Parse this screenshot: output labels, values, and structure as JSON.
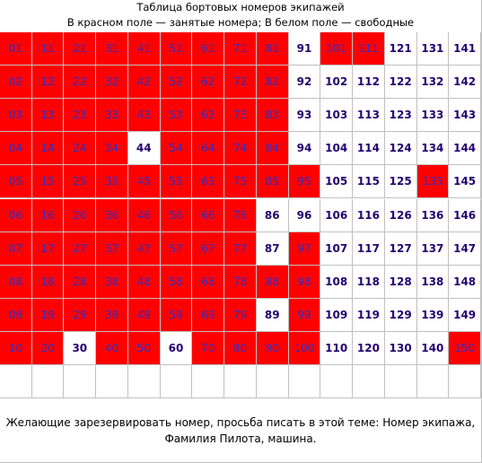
{
  "header": {
    "title": "Таблица бортовых номеров экипажей",
    "subtitle": "В красном поле — занятые номера; В белом поле — свободные"
  },
  "table": {
    "occupied_color": "#ff0000",
    "free_color": "#ffffff",
    "rows": [
      [
        {
          "label": "01",
          "occupied": true
        },
        {
          "label": "11",
          "occupied": true
        },
        {
          "label": "21",
          "occupied": true
        },
        {
          "label": "31",
          "occupied": true
        },
        {
          "label": "41",
          "occupied": true
        },
        {
          "label": "51",
          "occupied": true
        },
        {
          "label": "61",
          "occupied": true
        },
        {
          "label": "71",
          "occupied": true
        },
        {
          "label": "81",
          "occupied": true
        },
        {
          "label": "91",
          "occupied": false
        },
        {
          "label": "101",
          "occupied": true
        },
        {
          "label": "111",
          "occupied": true
        },
        {
          "label": "121",
          "occupied": false
        },
        {
          "label": "131",
          "occupied": false
        },
        {
          "label": "141",
          "occupied": false
        }
      ],
      [
        {
          "label": "02",
          "occupied": true
        },
        {
          "label": "12",
          "occupied": true
        },
        {
          "label": "22",
          "occupied": true
        },
        {
          "label": "32",
          "occupied": true
        },
        {
          "label": "42",
          "occupied": true
        },
        {
          "label": "52",
          "occupied": true
        },
        {
          "label": "62",
          "occupied": true
        },
        {
          "label": "72",
          "occupied": true
        },
        {
          "label": "82",
          "occupied": true
        },
        {
          "label": "92",
          "occupied": false
        },
        {
          "label": "102",
          "occupied": false
        },
        {
          "label": "112",
          "occupied": false
        },
        {
          "label": "122",
          "occupied": false
        },
        {
          "label": "132",
          "occupied": false
        },
        {
          "label": "142",
          "occupied": false
        }
      ],
      [
        {
          "label": "03",
          "occupied": true
        },
        {
          "label": "13",
          "occupied": true
        },
        {
          "label": "23",
          "occupied": true
        },
        {
          "label": "33",
          "occupied": true
        },
        {
          "label": "43",
          "occupied": true
        },
        {
          "label": "53",
          "occupied": true
        },
        {
          "label": "63",
          "occupied": true
        },
        {
          "label": "73",
          "occupied": true
        },
        {
          "label": "83",
          "occupied": true
        },
        {
          "label": "93",
          "occupied": false
        },
        {
          "label": "103",
          "occupied": false
        },
        {
          "label": "113",
          "occupied": false
        },
        {
          "label": "123",
          "occupied": false
        },
        {
          "label": "133",
          "occupied": false
        },
        {
          "label": "143",
          "occupied": false
        }
      ],
      [
        {
          "label": "04",
          "occupied": true
        },
        {
          "label": "14",
          "occupied": true
        },
        {
          "label": "24",
          "occupied": true
        },
        {
          "label": "34",
          "occupied": true
        },
        {
          "label": "44",
          "occupied": false
        },
        {
          "label": "54",
          "occupied": true
        },
        {
          "label": "64",
          "occupied": true
        },
        {
          "label": "74",
          "occupied": true
        },
        {
          "label": "84",
          "occupied": true
        },
        {
          "label": "94",
          "occupied": false
        },
        {
          "label": "104",
          "occupied": false
        },
        {
          "label": "114",
          "occupied": false
        },
        {
          "label": "124",
          "occupied": false
        },
        {
          "label": "134",
          "occupied": false
        },
        {
          "label": "144",
          "occupied": false
        }
      ],
      [
        {
          "label": "05",
          "occupied": true
        },
        {
          "label": "15",
          "occupied": true
        },
        {
          "label": "25",
          "occupied": true
        },
        {
          "label": "35",
          "occupied": true
        },
        {
          "label": "45",
          "occupied": true
        },
        {
          "label": "55",
          "occupied": true
        },
        {
          "label": "65",
          "occupied": true
        },
        {
          "label": "75",
          "occupied": true
        },
        {
          "label": "85",
          "occupied": true
        },
        {
          "label": "95",
          "occupied": true
        },
        {
          "label": "105",
          "occupied": false
        },
        {
          "label": "115",
          "occupied": false
        },
        {
          "label": "125",
          "occupied": false
        },
        {
          "label": "135",
          "occupied": true
        },
        {
          "label": "145",
          "occupied": false
        }
      ],
      [
        {
          "label": "06",
          "occupied": true
        },
        {
          "label": "16",
          "occupied": true
        },
        {
          "label": "26",
          "occupied": true
        },
        {
          "label": "36",
          "occupied": true
        },
        {
          "label": "46",
          "occupied": true
        },
        {
          "label": "56",
          "occupied": true
        },
        {
          "label": "66",
          "occupied": true
        },
        {
          "label": "76",
          "occupied": true
        },
        {
          "label": "86",
          "occupied": false
        },
        {
          "label": "96",
          "occupied": false
        },
        {
          "label": "106",
          "occupied": false
        },
        {
          "label": "116",
          "occupied": false
        },
        {
          "label": "126",
          "occupied": false
        },
        {
          "label": "136",
          "occupied": false
        },
        {
          "label": "146",
          "occupied": false
        }
      ],
      [
        {
          "label": "07",
          "occupied": true
        },
        {
          "label": "17",
          "occupied": true
        },
        {
          "label": "27",
          "occupied": true
        },
        {
          "label": "37",
          "occupied": true
        },
        {
          "label": "47",
          "occupied": true
        },
        {
          "label": "57",
          "occupied": true
        },
        {
          "label": "67",
          "occupied": true
        },
        {
          "label": "77",
          "occupied": true
        },
        {
          "label": "87",
          "occupied": false
        },
        {
          "label": "97",
          "occupied": true
        },
        {
          "label": "107",
          "occupied": false
        },
        {
          "label": "117",
          "occupied": false
        },
        {
          "label": "127",
          "occupied": false
        },
        {
          "label": "137",
          "occupied": false
        },
        {
          "label": "147",
          "occupied": false
        }
      ],
      [
        {
          "label": "08",
          "occupied": true
        },
        {
          "label": "18",
          "occupied": true
        },
        {
          "label": "28",
          "occupied": true
        },
        {
          "label": "38",
          "occupied": true
        },
        {
          "label": "48",
          "occupied": true
        },
        {
          "label": "58",
          "occupied": true
        },
        {
          "label": "68",
          "occupied": true
        },
        {
          "label": "78",
          "occupied": true
        },
        {
          "label": "88",
          "occupied": true
        },
        {
          "label": "98",
          "occupied": true
        },
        {
          "label": "108",
          "occupied": false
        },
        {
          "label": "118",
          "occupied": false
        },
        {
          "label": "128",
          "occupied": false
        },
        {
          "label": "138",
          "occupied": false
        },
        {
          "label": "148",
          "occupied": false
        }
      ],
      [
        {
          "label": "09",
          "occupied": true
        },
        {
          "label": "19",
          "occupied": true
        },
        {
          "label": "29",
          "occupied": true
        },
        {
          "label": "39",
          "occupied": true
        },
        {
          "label": "49",
          "occupied": true
        },
        {
          "label": "59",
          "occupied": true
        },
        {
          "label": "69",
          "occupied": true
        },
        {
          "label": "79",
          "occupied": true
        },
        {
          "label": "89",
          "occupied": false
        },
        {
          "label": "99",
          "occupied": true
        },
        {
          "label": "109",
          "occupied": false
        },
        {
          "label": "119",
          "occupied": false
        },
        {
          "label": "129",
          "occupied": false
        },
        {
          "label": "139",
          "occupied": false
        },
        {
          "label": "149",
          "occupied": false
        }
      ],
      [
        {
          "label": "10",
          "occupied": true
        },
        {
          "label": "20",
          "occupied": true
        },
        {
          "label": "30",
          "occupied": false
        },
        {
          "label": "40",
          "occupied": true
        },
        {
          "label": "50",
          "occupied": true
        },
        {
          "label": "60",
          "occupied": false
        },
        {
          "label": "70",
          "occupied": true
        },
        {
          "label": "80",
          "occupied": true
        },
        {
          "label": "90",
          "occupied": true
        },
        {
          "label": "100",
          "occupied": true
        },
        {
          "label": "110",
          "occupied": false
        },
        {
          "label": "120",
          "occupied": false
        },
        {
          "label": "130",
          "occupied": false
        },
        {
          "label": "140",
          "occupied": false
        },
        {
          "label": "150",
          "occupied": true
        }
      ]
    ]
  },
  "footer": {
    "lines": [
      "Желающие зарезервировать номер, просьба писать в этой теме: Номер экипажа,",
      "Фамилия Пилота, машина."
    ]
  }
}
